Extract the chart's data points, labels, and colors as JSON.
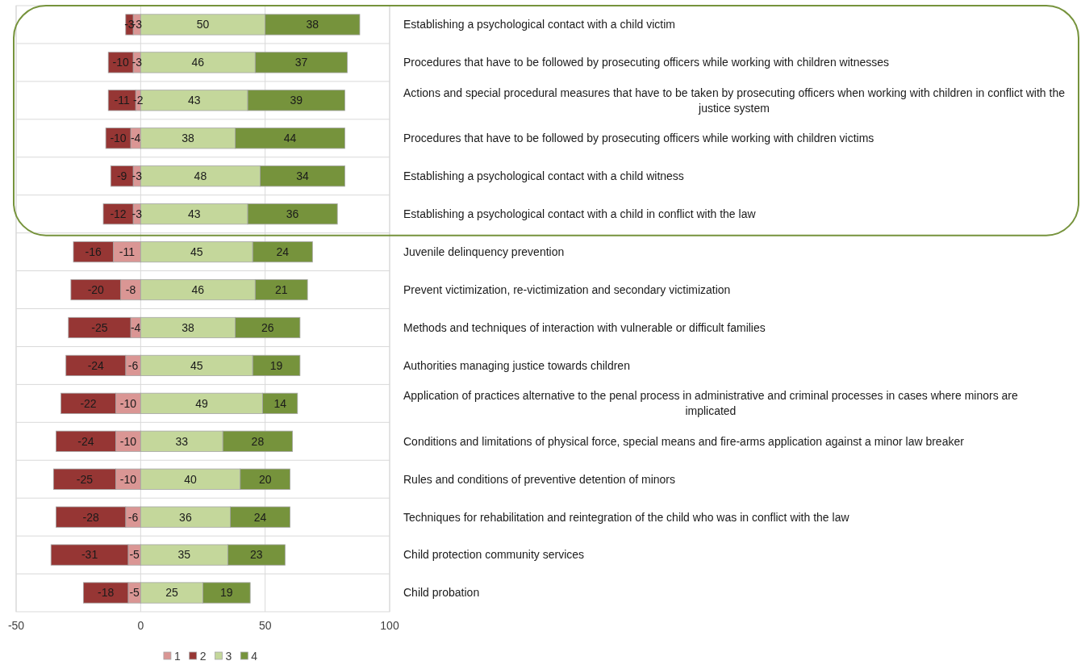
{
  "chart_data": {
    "type": "bar",
    "orientation": "horizontal",
    "stacked": true,
    "data_labels": true,
    "grid": true,
    "legend": "bottom",
    "categories": [
      "Establishing a psychological contact with a child victim",
      "Procedures that have to be followed by prosecuting officers while working with children witnesses",
      "Actions and special procedural measures that have to be taken by prosecuting officers when working with children in conflict with the justice system",
      "Procedures that have to be followed by prosecuting officers while working with children victims",
      "Establishing a psychological contact with a child witness",
      "Establishing a psychological contact with a child in conflict with the law",
      "Juvenile delinquency prevention",
      "Prevent victimization, re-victimization and secondary victimization",
      "Methods and techniques of interaction with vulnerable or difficult  families",
      "Authorities managing justice towards children",
      "Application of practices alternative to the penal process in administrative and criminal processes in cases where minors are implicated",
      "Conditions and limitations of physical force, special means and fire-arms application against a minor law breaker",
      "Rules and conditions of preventive detention of minors",
      "Techniques for rehabilitation and reintegration of the child who was in conflict with the law",
      "Child protection community services",
      "Child probation"
    ],
    "series": [
      {
        "name": "1",
        "color": "#da9694",
        "values": [
          -3,
          -3,
          -2,
          -4,
          -3,
          -3,
          -11,
          -8,
          -4,
          -6,
          -10,
          -10,
          -10,
          -6,
          -5,
          -5
        ]
      },
      {
        "name": "2",
        "color": "#963634",
        "values": [
          -3,
          -10,
          -11,
          -10,
          -9,
          -12,
          -16,
          -20,
          -25,
          -24,
          -22,
          -24,
          -25,
          -28,
          -31,
          -18
        ]
      },
      {
        "name": "3",
        "color": "#c4d79b",
        "values": [
          50,
          46,
          43,
          38,
          48,
          43,
          45,
          46,
          38,
          45,
          49,
          33,
          40,
          36,
          35,
          25
        ]
      },
      {
        "name": "4",
        "color": "#76933c",
        "values": [
          38,
          37,
          39,
          44,
          34,
          36,
          24,
          21,
          26,
          19,
          14,
          28,
          20,
          24,
          23,
          19
        ]
      }
    ],
    "xlim": [
      -50,
      100
    ],
    "xticks": [
      -50,
      0,
      50,
      100
    ]
  }
}
